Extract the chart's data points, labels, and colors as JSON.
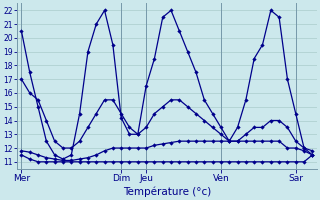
{
  "xlabel": "Température (°c)",
  "background_color": "#cce8ec",
  "grid_color": "#aacccc",
  "line_color": "#00008b",
  "ylim": [
    10.5,
    22.5
  ],
  "yticks": [
    11,
    12,
    13,
    14,
    15,
    16,
    17,
    18,
    19,
    20,
    21,
    22
  ],
  "day_labels": [
    "Mer",
    "Dim",
    "Jeu",
    "Ven",
    "Sar"
  ],
  "day_x": [
    0,
    12,
    15,
    24,
    33
  ],
  "num_points": 36,
  "series": {
    "high": [
      20.5,
      17.5,
      15.0,
      12.5,
      11.5,
      11.2,
      11.5,
      14.5,
      19.0,
      21.0,
      22.0,
      19.5,
      14.2,
      13.0,
      13.0,
      16.5,
      18.5,
      21.5,
      22.0,
      20.5,
      19.0,
      17.5,
      15.5,
      14.5,
      13.5,
      12.5,
      13.5,
      15.5,
      18.5,
      19.5,
      22.0,
      21.5,
      17.0,
      14.5,
      12.0,
      11.5
    ],
    "low": [
      11.5,
      11.2,
      11.0,
      11.0,
      11.0,
      11.0,
      11.0,
      11.0,
      11.0,
      11.0,
      11.0,
      11.0,
      11.0,
      11.0,
      11.0,
      11.0,
      11.0,
      11.0,
      11.0,
      11.0,
      11.0,
      11.0,
      11.0,
      11.0,
      11.0,
      11.0,
      11.0,
      11.0,
      11.0,
      11.0,
      11.0,
      11.0,
      11.0,
      11.0,
      11.0,
      11.5
    ],
    "avg1": [
      17.0,
      16.0,
      15.5,
      14.0,
      12.5,
      12.0,
      12.0,
      12.5,
      13.5,
      14.5,
      15.5,
      15.5,
      14.5,
      13.5,
      13.0,
      13.5,
      14.5,
      15.0,
      15.5,
      15.5,
      15.0,
      14.5,
      14.0,
      13.5,
      13.0,
      12.5,
      12.5,
      13.0,
      13.5,
      13.5,
      14.0,
      14.0,
      13.5,
      12.5,
      12.0,
      11.8
    ],
    "avg2": [
      11.8,
      11.7,
      11.5,
      11.3,
      11.2,
      11.1,
      11.1,
      11.2,
      11.3,
      11.5,
      11.8,
      12.0,
      12.0,
      12.0,
      12.0,
      12.0,
      12.2,
      12.3,
      12.4,
      12.5,
      12.5,
      12.5,
      12.5,
      12.5,
      12.5,
      12.5,
      12.5,
      12.5,
      12.5,
      12.5,
      12.5,
      12.5,
      12.0,
      12.0,
      11.8,
      11.5
    ]
  }
}
